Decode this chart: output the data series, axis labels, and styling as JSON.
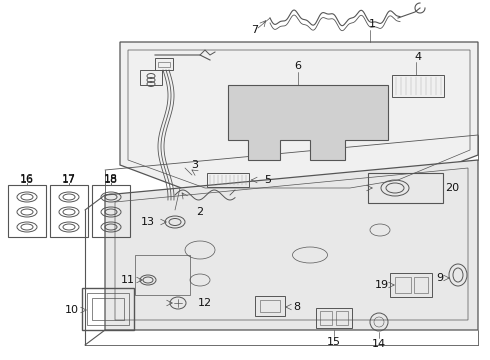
{
  "background_color": "#ffffff",
  "line_color": "#555555",
  "label_color": "#111111",
  "fig_w": 4.9,
  "fig_h": 3.6,
  "dpi": 100
}
